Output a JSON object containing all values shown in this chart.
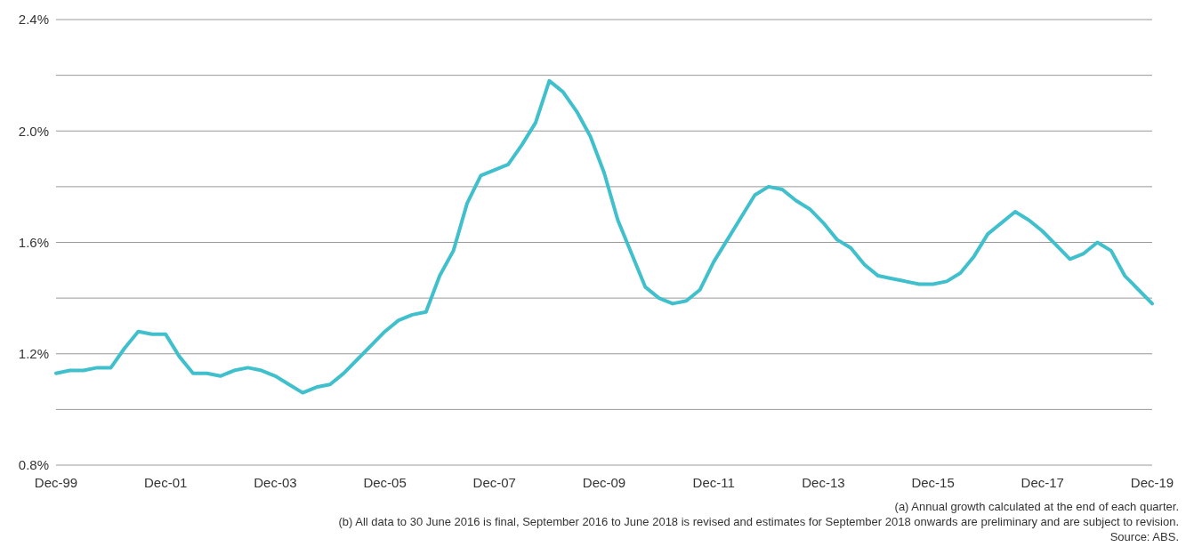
{
  "chart_data": {
    "type": "line",
    "categories": [
      "Dec-99",
      null,
      null,
      null,
      null,
      null,
      null,
      null,
      "Dec-01",
      null,
      null,
      null,
      null,
      null,
      null,
      null,
      "Dec-03",
      null,
      null,
      null,
      null,
      null,
      null,
      null,
      "Dec-05",
      null,
      null,
      null,
      null,
      null,
      null,
      null,
      "Dec-07",
      null,
      null,
      null,
      null,
      null,
      null,
      null,
      "Dec-09",
      null,
      null,
      null,
      null,
      null,
      null,
      null,
      "Dec-11",
      null,
      null,
      null,
      null,
      null,
      null,
      null,
      "Dec-13",
      null,
      null,
      null,
      null,
      null,
      null,
      null,
      "Dec-15",
      null,
      null,
      null,
      null,
      null,
      null,
      null,
      "Dec-17",
      null,
      null,
      null,
      null,
      null,
      null,
      null,
      "Dec-19"
    ],
    "series": [
      {
        "color": "#40c0cc",
        "values": [
          1.13,
          1.14,
          1.14,
          1.15,
          1.15,
          1.22,
          1.28,
          1.27,
          1.27,
          1.19,
          1.13,
          1.13,
          1.12,
          1.14,
          1.15,
          1.14,
          1.12,
          1.09,
          1.06,
          1.08,
          1.09,
          1.13,
          1.18,
          1.23,
          1.28,
          1.32,
          1.34,
          1.35,
          1.48,
          1.57,
          1.74,
          1.84,
          1.86,
          1.88,
          1.95,
          2.03,
          2.18,
          2.14,
          2.07,
          1.98,
          1.85,
          1.68,
          1.56,
          1.44,
          1.4,
          1.38,
          1.39,
          1.43,
          1.53,
          1.61,
          1.69,
          1.77,
          1.8,
          1.79,
          1.75,
          1.72,
          1.67,
          1.61,
          1.58,
          1.52,
          1.48,
          1.47,
          1.46,
          1.45,
          1.45,
          1.46,
          1.49,
          1.55,
          1.63,
          1.67,
          1.71,
          1.68,
          1.64,
          1.59,
          1.54,
          1.56,
          1.6,
          1.57,
          1.48,
          1.43,
          1.38
        ]
      }
    ],
    "ylim": [
      0.8,
      2.4
    ],
    "yticks": [
      {
        "value": 0.8,
        "label": "0.8%"
      },
      {
        "value": 1.0,
        "label": null
      },
      {
        "value": 1.2,
        "label": "1.2%"
      },
      {
        "value": 1.4,
        "label": null
      },
      {
        "value": 1.6,
        "label": "1.6%"
      },
      {
        "value": 1.8,
        "label": null
      },
      {
        "value": 2.0,
        "label": "2.0%"
      },
      {
        "value": 2.2,
        "label": null
      },
      {
        "value": 2.4,
        "label": "2.4%"
      }
    ],
    "grid": "y",
    "marker": "none",
    "line_style": "solid",
    "annotations": [
      "(a) Annual growth calculated at the end of each quarter.",
      "(b) All data to 30 June 2016 is final, September 2016 to June 2018 is revised and estimates for September 2018 onwards are preliminary and are subject to revision.",
      "Source: ABS."
    ]
  }
}
